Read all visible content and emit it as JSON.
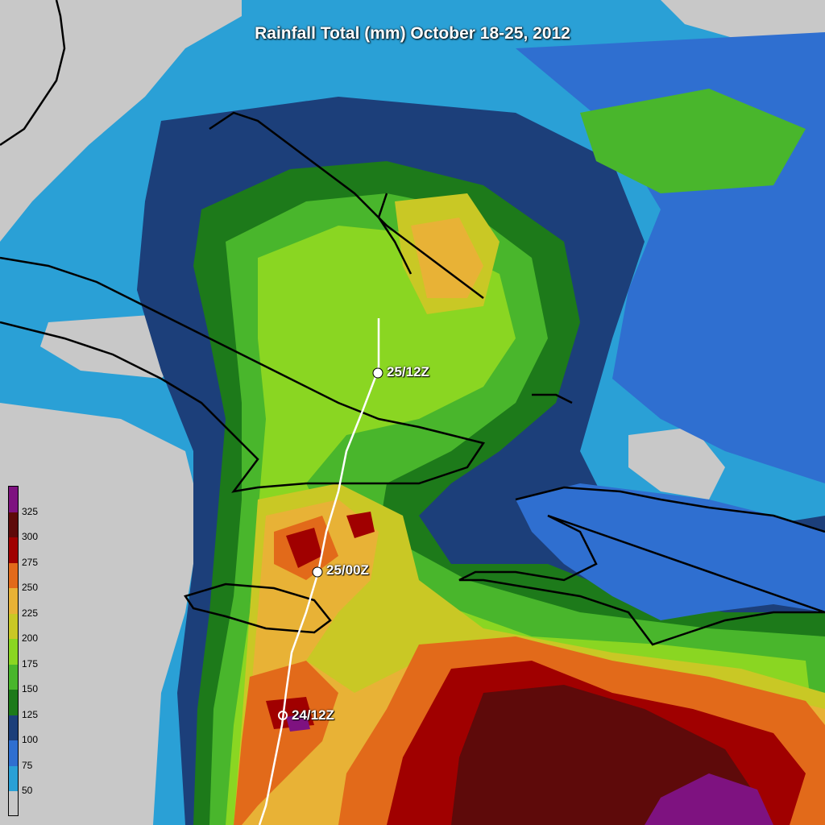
{
  "title": "Rainfall Total (mm) October 18-25, 2012",
  "legend": {
    "labels": [
      "325",
      "300",
      "275",
      "250",
      "225",
      "200",
      "175",
      "150",
      "125",
      "100",
      "75",
      "50"
    ],
    "colors": [
      "#7e1280",
      "#5e0a0a",
      "#a00000",
      "#e26a1a",
      "#e8b236",
      "#c9c825",
      "#8ad622",
      "#49b62c",
      "#1d7a1a",
      "#1c3f7a",
      "#2f6fd0",
      "#2aa0d6",
      "#c8c8c8"
    ]
  },
  "track": {
    "points": [
      {
        "label": "25/12Z"
      },
      {
        "label": "25/00Z"
      },
      {
        "label": "24/12Z"
      }
    ]
  }
}
